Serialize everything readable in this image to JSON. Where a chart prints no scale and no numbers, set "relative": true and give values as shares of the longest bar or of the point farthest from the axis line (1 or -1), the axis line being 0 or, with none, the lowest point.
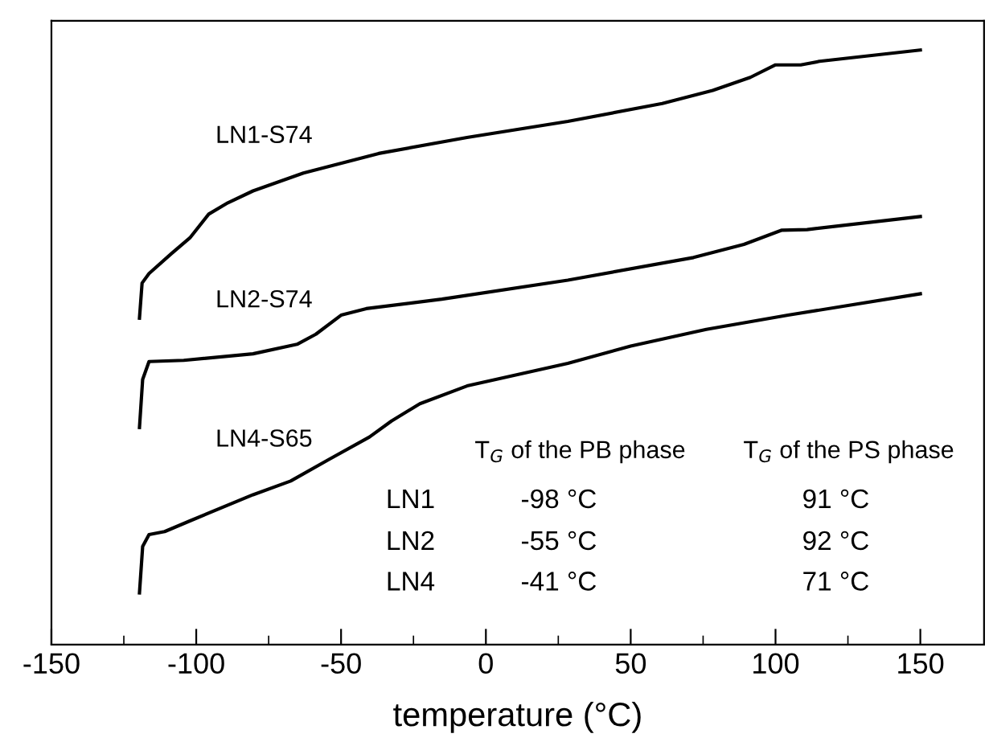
{
  "chart_data": {
    "type": "line",
    "relative": true,
    "xlabel": "temperature (°C)",
    "xlim": [
      -150,
      172
    ],
    "xticks": [
      -150,
      {
        "value": -125,
        "label": null
      },
      -100,
      {
        "value": -75,
        "label": null
      },
      -50,
      {
        "value": -25,
        "label": null
      },
      0,
      {
        "value": 25,
        "label": null
      },
      50,
      {
        "value": 75,
        "label": null
      },
      100,
      {
        "value": 125,
        "label": null
      },
      150
    ],
    "tick_labels": "x",
    "legend": false,
    "grid": false,
    "marker": "none",
    "line_style": "solid",
    "series": [
      {
        "name": "LN1-S74",
        "color": "#000000",
        "x": [
          -119.6,
          -118.7,
          -116.3,
          -108.7,
          -102.2,
          -95.7,
          -89.1,
          -80.4,
          -63,
          -37,
          -6.5,
          28.3,
          60.9,
          78.3,
          91.3,
          100,
          108.7,
          115.2,
          150
        ],
        "values": [
          0.549,
          0.608,
          0.624,
          0.657,
          0.684,
          0.724,
          0.743,
          0.763,
          0.793,
          0.826,
          0.853,
          0.88,
          0.91,
          0.932,
          0.954,
          0.975,
          0.975,
          0.981,
          1
        ]
      },
      {
        "name": "LN2-S74",
        "color": "#000000",
        "x": [
          -119.6,
          -118.5,
          -116.3,
          -104.3,
          -80.4,
          -65.2,
          -58.7,
          -50,
          -41.3,
          -15.2,
          28.3,
          71.7,
          89.1,
          102.2,
          110.9,
          150
        ],
        "values": [
          0.365,
          0.446,
          0.476,
          0.478,
          0.489,
          0.505,
          0.522,
          0.554,
          0.565,
          0.581,
          0.613,
          0.651,
          0.673,
          0.697,
          0.698,
          0.72
        ]
      },
      {
        "name": "LN4-S65",
        "color": "#000000",
        "x": [
          -119.6,
          -118.5,
          -116.3,
          -110.9,
          -102.2,
          -80.4,
          -67.4,
          -54.3,
          -40.2,
          -32.6,
          -22.8,
          -6.5,
          28.3,
          50,
          76.1,
          104.3,
          150
        ],
        "values": [
          0.087,
          0.165,
          0.185,
          0.19,
          0.208,
          0.252,
          0.275,
          0.311,
          0.349,
          0.376,
          0.405,
          0.435,
          0.473,
          0.502,
          0.53,
          0.554,
          0.59
        ]
      }
    ],
    "annotations": [
      "T$_{G}$ of the PB phase",
      "T$_{G}$ of the PS phase",
      "LN1",
      "-98 °C",
      "91 °C",
      "LN2",
      "-55 °C",
      "92 °C",
      "LN4",
      "-41 °C",
      "71 °C"
    ]
  }
}
